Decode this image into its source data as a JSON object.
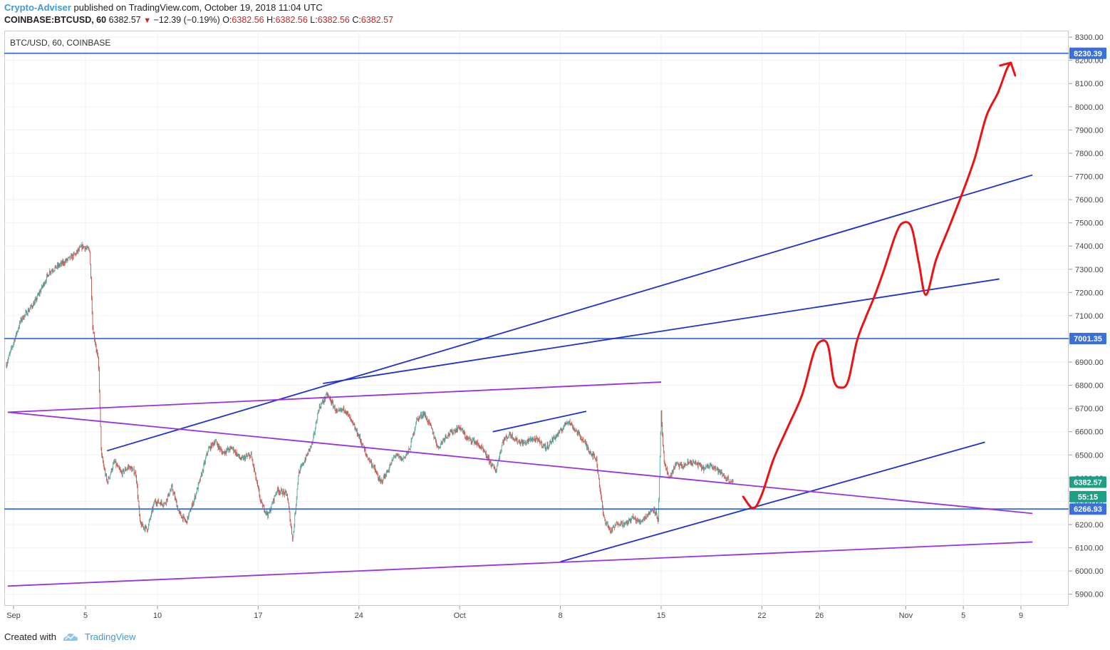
{
  "header": {
    "author": "Crypto-Adviser",
    "published_text": " published on TradingView.com, October 19, 2018 11:04 UTC",
    "symbol": "COINBASE:BTCUSD, 60",
    "last_price": "6382.57",
    "change_arrow": "▼",
    "change": "−12.39 (−0.19%)",
    "o_label": "O:",
    "o_value": "6382.56",
    "h_label": "H:",
    "h_value": "6382.56",
    "l_label": "L:",
    "l_value": "6382.56",
    "c_label": "C:",
    "c_value": "6382.57"
  },
  "legend": "BTC/USD, 60, COINBASE",
  "footer": {
    "created_with": "Created with",
    "brand": "TradingView"
  },
  "colors": {
    "up": "#5aa39b",
    "down": "#c0554a",
    "support_line": "#3a6fe0",
    "trend_blue": "#1f2fd0",
    "trend_purple": "#9b30e0",
    "projection": "#ee1111",
    "grid": "#eef0f4",
    "badge_blue": "#3a6fe0",
    "badge_green": "#1e9e85"
  },
  "chart_data": {
    "type": "candlestick",
    "symbol": "BTC/USD",
    "interval": "60",
    "exchange": "COINBASE",
    "y_range": [
      5850,
      8340
    ],
    "y_ticks": [
      5900,
      6000,
      6100,
      6200,
      6300,
      6400,
      6500,
      6600,
      6700,
      6800,
      6900,
      7000,
      7100,
      7200,
      7300,
      7400,
      7500,
      7600,
      7700,
      7800,
      7900,
      8000,
      8100,
      8200,
      8300
    ],
    "x_ticks": [
      {
        "label": "Sep",
        "day": 0
      },
      {
        "label": "5",
        "day": 5
      },
      {
        "label": "10",
        "day": 10
      },
      {
        "label": "17",
        "day": 17
      },
      {
        "label": "24",
        "day": 24
      },
      {
        "label": "Oct",
        "day": 31
      },
      {
        "label": "8",
        "day": 38
      },
      {
        "label": "15",
        "day": 45
      },
      {
        "label": "22",
        "day": 52
      },
      {
        "label": "26",
        "day": 56
      },
      {
        "label": "Nov",
        "day": 62
      },
      {
        "label": "5",
        "day": 66
      },
      {
        "label": "9",
        "day": 70
      }
    ],
    "price_path": [
      [
        -0.5,
        6890
      ],
      [
        0.5,
        7080
      ],
      [
        1.5,
        7160
      ],
      [
        2.5,
        7290
      ],
      [
        3.5,
        7330
      ],
      [
        4.2,
        7360
      ],
      [
        4.8,
        7400
      ],
      [
        5.3,
        7380
      ],
      [
        5.5,
        7050
      ],
      [
        5.9,
        6900
      ],
      [
        6.1,
        6500
      ],
      [
        6.5,
        6380
      ],
      [
        7.0,
        6470
      ],
      [
        7.5,
        6420
      ],
      [
        8.0,
        6450
      ],
      [
        8.5,
        6420
      ],
      [
        8.8,
        6200
      ],
      [
        9.3,
        6180
      ],
      [
        9.8,
        6300
      ],
      [
        10.5,
        6290
      ],
      [
        11.0,
        6360
      ],
      [
        11.5,
        6250
      ],
      [
        12.0,
        6210
      ],
      [
        12.5,
        6300
      ],
      [
        13.0,
        6400
      ],
      [
        13.5,
        6520
      ],
      [
        14.0,
        6560
      ],
      [
        14.5,
        6510
      ],
      [
        15.2,
        6530
      ],
      [
        15.8,
        6480
      ],
      [
        16.5,
        6500
      ],
      [
        17.2,
        6290
      ],
      [
        17.7,
        6240
      ],
      [
        18.3,
        6350
      ],
      [
        19.0,
        6330
      ],
      [
        19.4,
        6130
      ],
      [
        19.8,
        6420
      ],
      [
        20.4,
        6500
      ],
      [
        20.8,
        6560
      ],
      [
        21.2,
        6700
      ],
      [
        21.8,
        6760
      ],
      [
        22.5,
        6680
      ],
      [
        23.0,
        6700
      ],
      [
        23.5,
        6640
      ],
      [
        24.0,
        6580
      ],
      [
        24.5,
        6500
      ],
      [
        25.0,
        6450
      ],
      [
        25.5,
        6380
      ],
      [
        26.0,
        6430
      ],
      [
        26.5,
        6500
      ],
      [
        27.0,
        6480
      ],
      [
        27.5,
        6520
      ],
      [
        28.0,
        6650
      ],
      [
        28.5,
        6680
      ],
      [
        29.0,
        6620
      ],
      [
        29.5,
        6530
      ],
      [
        30.0,
        6580
      ],
      [
        30.5,
        6600
      ],
      [
        31.0,
        6620
      ],
      [
        31.5,
        6570
      ],
      [
        32.0,
        6560
      ],
      [
        32.5,
        6530
      ],
      [
        33.0,
        6480
      ],
      [
        33.5,
        6430
      ],
      [
        34.0,
        6560
      ],
      [
        34.5,
        6590
      ],
      [
        35.0,
        6560
      ],
      [
        35.5,
        6550
      ],
      [
        36.0,
        6570
      ],
      [
        36.5,
        6560
      ],
      [
        37.0,
        6530
      ],
      [
        37.5,
        6570
      ],
      [
        38.0,
        6600
      ],
      [
        38.5,
        6650
      ],
      [
        39.0,
        6610
      ],
      [
        39.5,
        6570
      ],
      [
        40.0,
        6520
      ],
      [
        40.5,
        6480
      ],
      [
        41.0,
        6230
      ],
      [
        41.5,
        6170
      ],
      [
        42.0,
        6210
      ],
      [
        42.5,
        6200
      ],
      [
        43.0,
        6230
      ],
      [
        43.5,
        6210
      ],
      [
        44.0,
        6240
      ],
      [
        44.5,
        6270
      ],
      [
        44.8,
        6220
      ],
      [
        45.0,
        6680
      ],
      [
        45.2,
        6460
      ],
      [
        45.6,
        6400
      ],
      [
        46.0,
        6460
      ],
      [
        46.5,
        6450
      ],
      [
        47.0,
        6470
      ],
      [
        47.5,
        6460
      ],
      [
        48.0,
        6440
      ],
      [
        48.5,
        6460
      ],
      [
        49.0,
        6430
      ],
      [
        49.5,
        6400
      ],
      [
        50.0,
        6382
      ]
    ],
    "horizontal_levels": [
      8230.39,
      7001.35,
      6266.93
    ],
    "price_badges": [
      {
        "label": "8230.39",
        "value": 8230.39,
        "style": "blue"
      },
      {
        "label": "7001.35",
        "value": 7001.35,
        "style": "blue"
      },
      {
        "label": "6382.57",
        "value": 6382.57,
        "style": "green"
      },
      {
        "label": "55:15",
        "value": 6320,
        "style": "green"
      },
      {
        "label": "6266.93",
        "value": 6266.93,
        "style": "blue"
      }
    ],
    "trend_lines": [
      {
        "color": "blue",
        "from": [
          6.5,
          6518
        ],
        "to": [
          70.8,
          7706
        ]
      },
      {
        "color": "blue",
        "from": [
          21.5,
          6808
        ],
        "to": [
          68.5,
          7258
        ]
      },
      {
        "color": "blue",
        "from": [
          33.3,
          6600
        ],
        "to": [
          39.8,
          6688
        ]
      },
      {
        "color": "blue",
        "from": [
          38.0,
          6040
        ],
        "to": [
          67.5,
          6555
        ]
      },
      {
        "color": "purple",
        "from": [
          -0.4,
          6684
        ],
        "to": [
          70.8,
          6248
        ]
      },
      {
        "color": "purple",
        "from": [
          -0.4,
          5935
        ],
        "to": [
          70.8,
          6125
        ]
      },
      {
        "color": "purple",
        "from": [
          -0.4,
          6684
        ],
        "to": [
          45.0,
          6814
        ]
      }
    ],
    "projection_path": [
      [
        50.7,
        6320
      ],
      [
        51.4,
        6270
      ],
      [
        52.0,
        6330
      ],
      [
        52.8,
        6480
      ],
      [
        53.8,
        6620
      ],
      [
        54.8,
        6760
      ],
      [
        55.6,
        6940
      ],
      [
        56.1,
        6990
      ],
      [
        56.6,
        6970
      ],
      [
        57.0,
        6820
      ],
      [
        57.5,
        6790
      ],
      [
        58.0,
        6820
      ],
      [
        58.6,
        6990
      ],
      [
        59.2,
        7090
      ],
      [
        59.8,
        7180
      ],
      [
        60.5,
        7300
      ],
      [
        61.3,
        7450
      ],
      [
        61.8,
        7500
      ],
      [
        62.4,
        7480
      ],
      [
        62.9,
        7330
      ],
      [
        63.4,
        7190
      ],
      [
        64.1,
        7340
      ],
      [
        65.0,
        7480
      ],
      [
        66.0,
        7640
      ],
      [
        66.8,
        7780
      ],
      [
        67.6,
        7960
      ],
      [
        68.4,
        8060
      ],
      [
        69.0,
        8160
      ],
      [
        69.3,
        8190
      ]
    ]
  }
}
